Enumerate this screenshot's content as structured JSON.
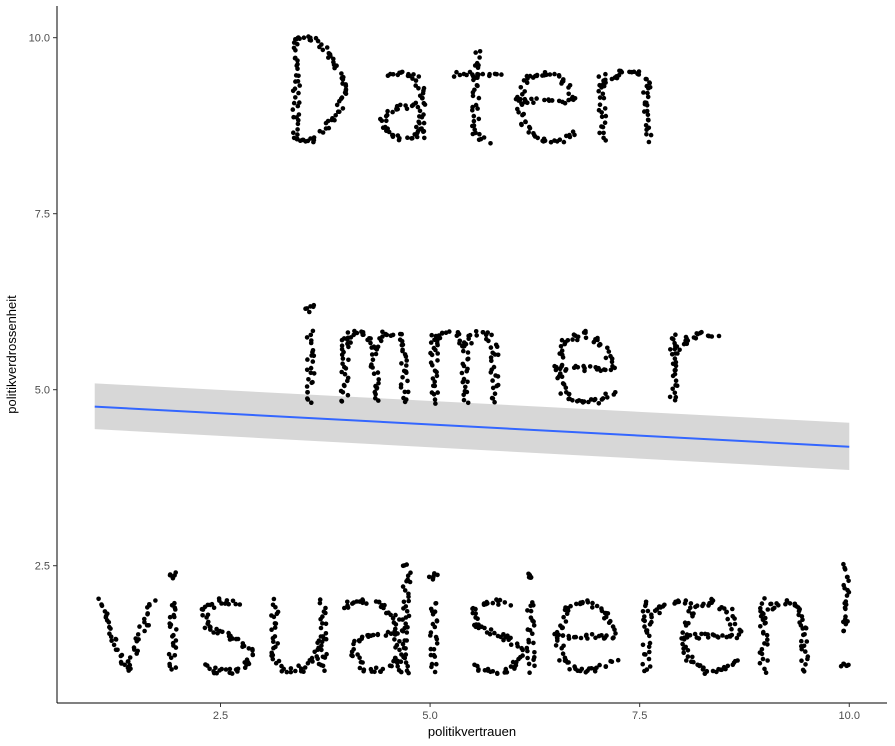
{
  "chart_data": {
    "type": "scatter",
    "title": "",
    "xlabel": "politikvertrauen",
    "ylabel": "politikverdrossenheit",
    "xlim": [
      0.55,
      10.45
    ],
    "ylim": [
      0.55,
      10.45
    ],
    "x_ticks": [
      2.5,
      5.0,
      7.5,
      10.0
    ],
    "y_ticks": [
      2.5,
      5.0,
      7.5,
      10.0
    ],
    "x_tick_labels": [
      "2.5",
      "5.0",
      "7.5",
      "10.0"
    ],
    "y_tick_labels": [
      "2.5",
      "5.0",
      "7.5",
      "10.0"
    ],
    "grid": false,
    "legend": "none",
    "point_color": "#000000",
    "smooth": {
      "method": "lm",
      "color": "#3366FF",
      "band_color": "#D3D3D3",
      "x": [
        1.0,
        10.0
      ],
      "y": [
        4.76,
        4.19
      ],
      "ci_lower": [
        4.44,
        3.86
      ],
      "ci_upper": [
        5.09,
        4.53
      ]
    },
    "strokes": [
      {
        "x": [
          3.4,
          3.4
        ],
        "y": [
          8.55,
          10.0
        ]
      },
      {
        "x": [
          3.4,
          3.6,
          3.85,
          3.98,
          3.98,
          3.85,
          3.6,
          3.4
        ],
        "y": [
          10.0,
          10.0,
          9.72,
          9.35,
          9.2,
          8.82,
          8.55,
          8.55
        ]
      },
      {
        "x": [
          4.5,
          4.66,
          4.8,
          4.9,
          4.9
        ],
        "y": [
          9.45,
          9.5,
          9.45,
          9.28,
          8.6
        ]
      },
      {
        "x": [
          4.9,
          4.6,
          4.45,
          4.45,
          4.6,
          4.8,
          4.9
        ],
        "y": [
          9.05,
          9.0,
          8.88,
          8.72,
          8.57,
          8.6,
          8.78
        ]
      },
      {
        "x": [
          5.55,
          5.55,
          5.68
        ],
        "y": [
          9.8,
          8.6,
          8.52
        ]
      },
      {
        "x": [
          5.3,
          5.82
        ],
        "y": [
          9.48,
          9.48
        ]
      },
      {
        "x": [
          6.05,
          6.7
        ],
        "y": [
          9.1,
          9.1
        ]
      },
      {
        "x": [
          6.7,
          6.6,
          6.38,
          6.15,
          6.05,
          6.12,
          6.3,
          6.55,
          6.72
        ],
        "y": [
          9.1,
          9.38,
          9.5,
          9.42,
          9.1,
          8.75,
          8.55,
          8.55,
          8.65
        ]
      },
      {
        "x": [
          7.05,
          7.05
        ],
        "y": [
          8.55,
          9.5
        ]
      },
      {
        "x": [
          7.05,
          7.25,
          7.45,
          7.58,
          7.6,
          7.6
        ],
        "y": [
          9.3,
          9.5,
          9.5,
          9.38,
          9.1,
          8.55
        ]
      },
      {
        "x": [
          3.58,
          3.58
        ],
        "y": [
          4.82,
          5.8
        ]
      },
      {
        "x": [
          3.56,
          3.58,
          3.6
        ],
        "y": [
          6.12,
          6.2,
          6.12
        ]
      },
      {
        "x": [
          3.98,
          3.98
        ],
        "y": [
          4.82,
          5.8
        ]
      },
      {
        "x": [
          3.98,
          4.08,
          4.24,
          4.34,
          4.34
        ],
        "y": [
          5.6,
          5.8,
          5.8,
          5.6,
          4.82
        ]
      },
      {
        "x": [
          4.34,
          4.44,
          4.6,
          4.7,
          4.7
        ],
        "y": [
          5.6,
          5.8,
          5.8,
          5.6,
          4.82
        ]
      },
      {
        "x": [
          5.05,
          5.05
        ],
        "y": [
          4.82,
          5.8
        ]
      },
      {
        "x": [
          5.05,
          5.15,
          5.31,
          5.41,
          5.41
        ],
        "y": [
          5.6,
          5.8,
          5.8,
          5.6,
          4.82
        ]
      },
      {
        "x": [
          5.41,
          5.51,
          5.67,
          5.77,
          5.77
        ],
        "y": [
          5.6,
          5.8,
          5.8,
          5.6,
          4.82
        ]
      },
      {
        "x": [
          6.55,
          7.18
        ],
        "y": [
          5.3,
          5.3
        ]
      },
      {
        "x": [
          7.18,
          7.06,
          6.84,
          6.62,
          6.52,
          6.58,
          6.76,
          7.0,
          7.2
        ],
        "y": [
          5.3,
          5.65,
          5.8,
          5.68,
          5.3,
          4.98,
          4.82,
          4.84,
          4.96
        ]
      },
      {
        "x": [
          7.9,
          7.9
        ],
        "y": [
          4.82,
          5.8
        ]
      },
      {
        "x": [
          7.9,
          8.06,
          8.26,
          8.4
        ],
        "y": [
          5.5,
          5.72,
          5.8,
          5.75
        ]
      },
      {
        "x": [
          1.05,
          1.38,
          1.7
        ],
        "y": [
          2.0,
          1.0,
          2.0
        ]
      },
      {
        "x": [
          1.93,
          1.93
        ],
        "y": [
          1.0,
          2.0
        ]
      },
      {
        "x": [
          1.91,
          1.93,
          1.95
        ],
        "y": [
          2.32,
          2.4,
          2.32
        ]
      },
      {
        "x": [
          2.7,
          2.5,
          2.32,
          2.32,
          2.5,
          2.72,
          2.84,
          2.84,
          2.66,
          2.46,
          2.3
        ],
        "y": [
          1.96,
          2.0,
          1.9,
          1.65,
          1.55,
          1.45,
          1.3,
          1.12,
          1.0,
          1.0,
          1.08
        ]
      },
      {
        "x": [
          3.15,
          3.15,
          3.25,
          3.45,
          3.62,
          3.72
        ],
        "y": [
          2.0,
          1.22,
          1.02,
          1.02,
          1.2,
          1.5
        ]
      },
      {
        "x": [
          3.72,
          3.72
        ],
        "y": [
          2.0,
          1.0
        ]
      },
      {
        "x": [
          3.98,
          4.05,
          4.2,
          4.42,
          4.6,
          4.62
        ],
        "y": [
          1.88,
          1.96,
          2.0,
          1.95,
          1.75,
          1.55
        ]
      },
      {
        "x": [
          4.62,
          4.62
        ],
        "y": [
          1.55,
          1.0
        ]
      },
      {
        "x": [
          4.62,
          4.3,
          4.12,
          4.1,
          4.22,
          4.45,
          4.62
        ],
        "y": [
          1.55,
          1.52,
          1.4,
          1.2,
          1.02,
          1.02,
          1.2
        ]
      },
      {
        "x": [
          4.72,
          4.72
        ],
        "y": [
          1.0,
          2.55
        ]
      },
      {
        "x": [
          5.05,
          5.05
        ],
        "y": [
          1.0,
          2.0
        ]
      },
      {
        "x": [
          5.03,
          5.05,
          5.07
        ],
        "y": [
          2.32,
          2.4,
          2.32
        ]
      },
      {
        "x": [
          5.92,
          5.72,
          5.54,
          5.54,
          5.72,
          5.94,
          6.06,
          6.06,
          5.88,
          5.68,
          5.52
        ],
        "y": [
          1.96,
          2.0,
          1.9,
          1.65,
          1.55,
          1.45,
          1.3,
          1.12,
          1.0,
          1.0,
          1.08
        ]
      },
      {
        "x": [
          6.2,
          6.2
        ],
        "y": [
          1.0,
          2.0
        ]
      },
      {
        "x": [
          6.18,
          6.2,
          6.22
        ],
        "y": [
          2.32,
          2.4,
          2.32
        ]
      },
      {
        "x": [
          6.55,
          7.18
        ],
        "y": [
          1.5,
          1.5
        ]
      },
      {
        "x": [
          7.18,
          7.06,
          6.84,
          6.62,
          6.52,
          6.58,
          6.76,
          7.0,
          7.2
        ],
        "y": [
          1.5,
          1.85,
          2.0,
          1.88,
          1.5,
          1.18,
          1.0,
          1.04,
          1.16
        ]
      },
      {
        "x": [
          7.58,
          7.58
        ],
        "y": [
          1.0,
          2.0
        ]
      },
      {
        "x": [
          7.58,
          7.74,
          7.94,
          8.08
        ],
        "y": [
          1.7,
          1.92,
          2.0,
          1.95
        ]
      },
      {
        "x": [
          8.05,
          8.68
        ],
        "y": [
          1.5,
          1.5
        ]
      },
      {
        "x": [
          8.68,
          8.56,
          8.34,
          8.12,
          8.02,
          8.08,
          8.26,
          8.5,
          8.7
        ],
        "y": [
          1.5,
          1.85,
          2.0,
          1.88,
          1.5,
          1.18,
          1.0,
          1.04,
          1.16
        ]
      },
      {
        "x": [
          8.98,
          8.98
        ],
        "y": [
          1.0,
          2.0
        ]
      },
      {
        "x": [
          8.98,
          9.1,
          9.28,
          9.42,
          9.46,
          9.46
        ],
        "y": [
          1.75,
          1.95,
          2.0,
          1.88,
          1.62,
          1.0
        ]
      },
      {
        "x": [
          9.95,
          9.95
        ],
        "y": [
          1.55,
          2.5
        ]
      },
      {
        "x": [
          9.93,
          9.95,
          9.97
        ],
        "y": [
          1.05,
          1.12,
          1.05
        ]
      }
    ]
  }
}
